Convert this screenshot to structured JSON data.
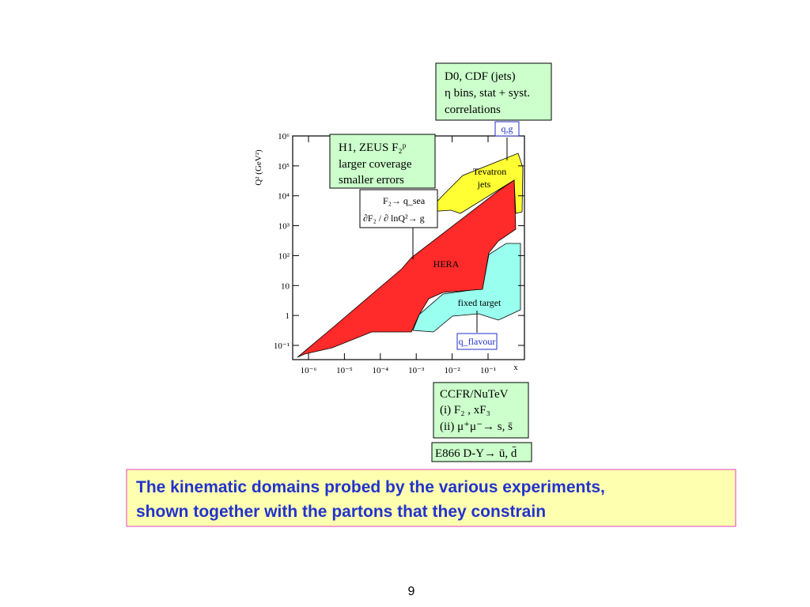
{
  "plot": {
    "y_axis_label": "Q² (GeV²)",
    "x_axis_label": "x",
    "y_ticks": [
      "10⁶",
      "10⁵",
      "10⁴",
      "10³",
      "10²",
      "10",
      "1",
      "10⁻¹"
    ],
    "x_ticks": [
      "10⁻⁶",
      "10⁻⁵",
      "10⁻⁴",
      "10⁻³",
      "10⁻²",
      "10⁻¹"
    ],
    "regions": {
      "tevatron": [
        "Tevatron",
        "jets"
      ],
      "hera": "HERA",
      "fixed_target": "fixed target"
    }
  },
  "boxes": {
    "d0": [
      "D0, CDF (jets)",
      "η bins, stat + syst.",
      "correlations"
    ],
    "qg": "q,g",
    "h1": [
      "H1, ZEUS  F₂ᵖ",
      "larger coverage",
      "smaller errors"
    ],
    "f2": [
      "F₂→ q_sea",
      "∂F₂ / ∂ lnQ²→ g"
    ],
    "qflavour": "q_flavour",
    "ccfr": [
      "CCFR/NuTeV",
      "(i) F₂ , xF₃",
      "(ii) μ⁺μ⁻→ s, s̄"
    ],
    "e866": "E866 D-Y→ ū, d̄"
  },
  "caption": [
    "The kinematic domains probed by the various experiments,",
    "shown together with the partons that they constrain"
  ],
  "page_number": "9"
}
